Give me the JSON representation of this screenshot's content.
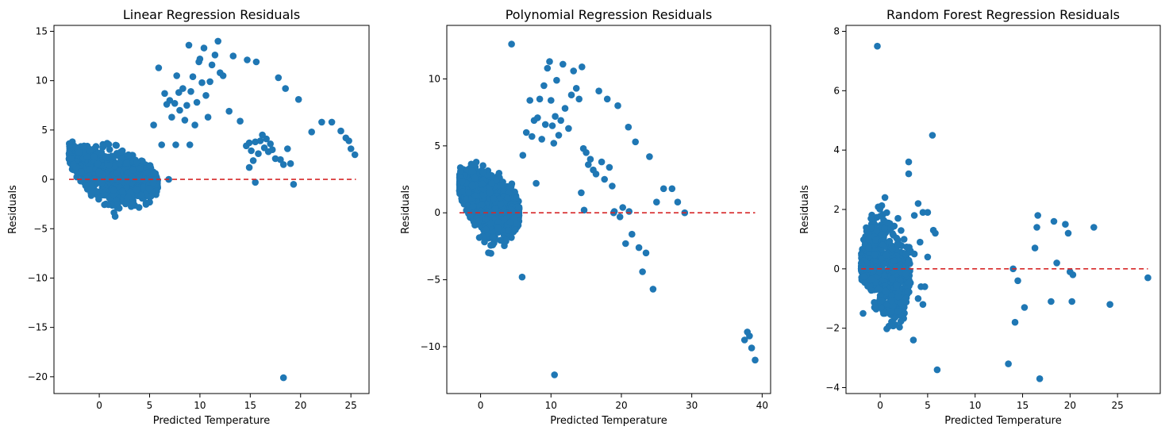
{
  "chart_data": [
    {
      "type": "scatter",
      "title": "Linear Regression Residuals",
      "xlabel": "Predicted Temperature",
      "ylabel": "Residuals",
      "xlim": [
        -4.5,
        26.8
      ],
      "ylim": [
        -21.7,
        15.6
      ],
      "xticks": [
        0,
        5,
        10,
        15,
        20,
        25
      ],
      "xtick_labels": [
        "0",
        "5",
        "10",
        "15",
        "20",
        "25"
      ],
      "yticks": [
        -20,
        -15,
        -10,
        -5,
        0,
        5,
        10,
        15
      ],
      "ytick_labels": [
        "−20",
        "−15",
        "−10",
        "−5",
        "0",
        "5",
        "10",
        "15"
      ],
      "grid": false,
      "series": [
        {
          "color": "#1f77b4",
          "cluster": {
            "xmin": -3,
            "xmax": 5.8,
            "count": 1100,
            "seed": 11,
            "upper": [
              [
                -3,
                3.8
              ],
              [
                -1,
                4.3
              ],
              [
                1,
                4.3
              ],
              [
                3,
                3.5
              ],
              [
                5,
                2.5
              ],
              [
                5.8,
                0.5
              ]
            ],
            "lower": [
              [
                -3,
                1.5
              ],
              [
                -1.5,
                -1.5
              ],
              [
                0,
                -3
              ],
              [
                1.5,
                -4.2
              ],
              [
                3,
                -3.5
              ],
              [
                5,
                -3.2
              ],
              [
                5.8,
                -1.5
              ]
            ]
          },
          "points": [
            [
              5.9,
              11.3
            ],
            [
              6.5,
              8.7
            ],
            [
              6.7,
              7.6
            ],
            [
              7.0,
              8.0
            ],
            [
              7.2,
              6.3
            ],
            [
              7.5,
              7.7
            ],
            [
              7.7,
              10.5
            ],
            [
              7.9,
              8.8
            ],
            [
              8.0,
              7.0
            ],
            [
              8.3,
              9.2
            ],
            [
              8.5,
              6.0
            ],
            [
              8.7,
              7.5
            ],
            [
              8.9,
              13.6
            ],
            [
              9.1,
              8.9
            ],
            [
              9.3,
              10.4
            ],
            [
              9.5,
              5.5
            ],
            [
              9.7,
              7.8
            ],
            [
              9.9,
              11.9
            ],
            [
              10.0,
              12.2
            ],
            [
              10.2,
              9.8
            ],
            [
              10.4,
              13.3
            ],
            [
              10.6,
              8.5
            ],
            [
              10.8,
              6.3
            ],
            [
              11.0,
              9.9
            ],
            [
              11.2,
              11.6
            ],
            [
              11.5,
              12.6
            ],
            [
              11.8,
              14.0
            ],
            [
              12.0,
              10.8
            ],
            [
              12.3,
              10.5
            ],
            [
              12.9,
              6.9
            ],
            [
              13.3,
              12.5
            ],
            [
              14.0,
              5.9
            ],
            [
              14.7,
              12.1
            ],
            [
              14.6,
              3.4
            ],
            [
              14.9,
              3.7
            ],
            [
              15.1,
              2.9
            ],
            [
              15.3,
              1.9
            ],
            [
              15.5,
              3.8
            ],
            [
              15.6,
              11.9
            ],
            [
              15.8,
              2.6
            ],
            [
              16.0,
              3.9
            ],
            [
              16.2,
              4.5
            ],
            [
              16.4,
              3.2
            ],
            [
              16.6,
              4.1
            ],
            [
              16.8,
              2.8
            ],
            [
              17.0,
              3.6
            ],
            [
              17.2,
              3.0
            ],
            [
              17.5,
              2.1
            ],
            [
              17.8,
              10.3
            ],
            [
              18.0,
              2.0
            ],
            [
              18.3,
              1.5
            ],
            [
              18.5,
              9.2
            ],
            [
              18.7,
              3.1
            ],
            [
              19.0,
              1.6
            ],
            [
              19.3,
              -0.5
            ],
            [
              19.8,
              8.1
            ],
            [
              15.5,
              -0.3
            ],
            [
              14.9,
              1.2
            ],
            [
              18.3,
              -20.1
            ],
            [
              21.1,
              4.8
            ],
            [
              22.1,
              5.8
            ],
            [
              23.1,
              5.8
            ],
            [
              24.0,
              4.9
            ],
            [
              24.5,
              4.2
            ],
            [
              24.8,
              3.9
            ],
            [
              25.0,
              3.1
            ],
            [
              25.4,
              2.5
            ],
            [
              5.4,
              5.5
            ],
            [
              6.2,
              3.5
            ],
            [
              7.6,
              3.5
            ],
            [
              9.0,
              3.5
            ],
            [
              6.9,
              0.0
            ]
          ]
        }
      ],
      "reference_line": {
        "y": 0,
        "x_range": [
          -3,
          25.5
        ],
        "color": "#d62728",
        "style": "dashed"
      }
    },
    {
      "type": "scatter",
      "title": "Polynomial Regression Residuals",
      "xlabel": "Predicted Temperature",
      "ylabel": "Residuals",
      "xlim": [
        -4.8,
        41.2
      ],
      "ylim": [
        -13.5,
        14.0
      ],
      "xticks": [
        0,
        10,
        20,
        30,
        40
      ],
      "xtick_labels": [
        "0",
        "10",
        "20",
        "30",
        "40"
      ],
      "yticks": [
        -10,
        -5,
        0,
        5,
        10
      ],
      "ytick_labels": [
        "−10",
        "−5",
        "0",
        "5",
        "10"
      ],
      "grid": false,
      "series": [
        {
          "color": "#1f77b4",
          "cluster": {
            "xmin": -3,
            "xmax": 5.5,
            "count": 1100,
            "seed": 23,
            "upper": [
              [
                -3,
                3.5
              ],
              [
                -1,
                4.5
              ],
              [
                1,
                4.2
              ],
              [
                3,
                3.8
              ],
              [
                4.5,
                2.8
              ],
              [
                5.5,
                1.0
              ]
            ],
            "lower": [
              [
                -3,
                1.0
              ],
              [
                -1.5,
                -1.0
              ],
              [
                0,
                -2.5
              ],
              [
                1.5,
                -3.7
              ],
              [
                3,
                -3.2
              ],
              [
                4.5,
                -2.5
              ],
              [
                5.5,
                -1.0
              ]
            ]
          },
          "points": [
            [
              4.4,
              12.6
            ],
            [
              5.9,
              -4.8
            ],
            [
              6.0,
              4.3
            ],
            [
              6.5,
              6.0
            ],
            [
              7.0,
              8.4
            ],
            [
              7.3,
              5.7
            ],
            [
              7.6,
              6.9
            ],
            [
              7.9,
              2.2
            ],
            [
              8.1,
              7.1
            ],
            [
              8.4,
              8.5
            ],
            [
              8.7,
              5.5
            ],
            [
              9.0,
              9.5
            ],
            [
              9.2,
              6.6
            ],
            [
              9.5,
              10.8
            ],
            [
              9.8,
              11.3
            ],
            [
              10.0,
              8.4
            ],
            [
              10.2,
              6.5
            ],
            [
              10.4,
              5.2
            ],
            [
              10.6,
              7.2
            ],
            [
              10.8,
              9.9
            ],
            [
              11.1,
              5.8
            ],
            [
              11.4,
              6.9
            ],
            [
              11.7,
              11.1
            ],
            [
              12.0,
              7.8
            ],
            [
              12.5,
              6.3
            ],
            [
              12.9,
              8.8
            ],
            [
              13.2,
              10.6
            ],
            [
              13.6,
              9.3
            ],
            [
              14.0,
              8.5
            ],
            [
              14.4,
              10.9
            ],
            [
              14.6,
              4.8
            ],
            [
              15.0,
              4.5
            ],
            [
              15.3,
              3.6
            ],
            [
              15.6,
              4.0
            ],
            [
              16.0,
              3.2
            ],
            [
              16.4,
              2.9
            ],
            [
              16.8,
              9.1
            ],
            [
              17.2,
              3.8
            ],
            [
              17.6,
              2.5
            ],
            [
              18.0,
              8.5
            ],
            [
              18.3,
              3.4
            ],
            [
              18.7,
              2.0
            ],
            [
              19.0,
              0.1
            ],
            [
              19.5,
              8.0
            ],
            [
              19.8,
              -0.3
            ],
            [
              20.2,
              0.4
            ],
            [
              20.6,
              -2.3
            ],
            [
              21.0,
              6.4
            ],
            [
              21.5,
              -1.6
            ],
            [
              22.0,
              5.3
            ],
            [
              22.5,
              -2.6
            ],
            [
              23.0,
              -4.4
            ],
            [
              23.5,
              -3.0
            ],
            [
              24.0,
              4.2
            ],
            [
              24.5,
              -5.7
            ],
            [
              25.0,
              0.8
            ],
            [
              26.0,
              1.8
            ],
            [
              27.2,
              1.8
            ],
            [
              28.0,
              0.8
            ],
            [
              29.0,
              0.0
            ],
            [
              10.5,
              -12.1
            ],
            [
              37.5,
              -9.5
            ],
            [
              37.9,
              -8.9
            ],
            [
              38.2,
              -9.2
            ],
            [
              38.5,
              -10.1
            ],
            [
              39.0,
              -11.0
            ],
            [
              14.7,
              0.2
            ],
            [
              14.3,
              1.5
            ],
            [
              18.9,
              0.0
            ],
            [
              21.1,
              0.1
            ]
          ]
        }
      ],
      "reference_line": {
        "y": 0,
        "x_range": [
          -3,
          39
        ],
        "color": "#d62728",
        "style": "dashed"
      }
    },
    {
      "type": "scatter",
      "title": "Random Forest Regression Residuals",
      "xlabel": "Predicted Temperature",
      "ylabel": "Residuals",
      "xlim": [
        -3.6,
        29.5
      ],
      "ylim": [
        -4.2,
        8.2
      ],
      "xticks": [
        0,
        5,
        10,
        15,
        20,
        25
      ],
      "xtick_labels": [
        "0",
        "5",
        "10",
        "15",
        "20",
        "25"
      ],
      "yticks": [
        -4,
        -2,
        0,
        2,
        4,
        6,
        8
      ],
      "ytick_labels": [
        "−4",
        "−2",
        "0",
        "2",
        "4",
        "6",
        "8"
      ],
      "grid": false,
      "series": [
        {
          "color": "#1f77b4",
          "cluster": {
            "xmin": -2,
            "xmax": 3.2,
            "count": 700,
            "seed": 37,
            "upper": [
              [
                -2,
                0.8
              ],
              [
                -1,
                2.2
              ],
              [
                0,
                2.8
              ],
              [
                1,
                2.4
              ],
              [
                2,
                2.0
              ],
              [
                3.2,
                1.0
              ]
            ],
            "lower": [
              [
                -2,
                -0.5
              ],
              [
                -1,
                -1.4
              ],
              [
                0,
                -2.3
              ],
              [
                1,
                -2.8
              ],
              [
                2,
                -2.9
              ],
              [
                3.2,
                -1.0
              ]
            ]
          },
          "points": [
            [
              -0.3,
              7.5
            ],
            [
              5.5,
              4.5
            ],
            [
              3.0,
              3.6
            ],
            [
              3.0,
              3.2
            ],
            [
              4.0,
              2.2
            ],
            [
              4.5,
              1.9
            ],
            [
              5.0,
              1.9
            ],
            [
              5.8,
              1.2
            ],
            [
              3.6,
              1.8
            ],
            [
              4.2,
              0.9
            ],
            [
              3.6,
              0.5
            ],
            [
              4.3,
              -0.6
            ],
            [
              4.7,
              -0.6
            ],
            [
              5.0,
              0.4
            ],
            [
              5.6,
              1.3
            ],
            [
              4.0,
              -1.0
            ],
            [
              3.5,
              -2.4
            ],
            [
              4.5,
              -1.2
            ],
            [
              6.0,
              -3.4
            ],
            [
              13.5,
              -3.2
            ],
            [
              14.0,
              0.0
            ],
            [
              14.2,
              -1.8
            ],
            [
              14.5,
              -0.4
            ],
            [
              15.2,
              -1.3
            ],
            [
              16.3,
              0.7
            ],
            [
              16.5,
              1.4
            ],
            [
              16.6,
              1.8
            ],
            [
              16.8,
              -3.7
            ],
            [
              18.0,
              -1.1
            ],
            [
              18.3,
              1.6
            ],
            [
              18.6,
              0.2
            ],
            [
              19.5,
              1.5
            ],
            [
              19.8,
              1.2
            ],
            [
              20.0,
              -0.1
            ],
            [
              20.2,
              -1.1
            ],
            [
              20.3,
              -0.2
            ],
            [
              22.5,
              1.4
            ],
            [
              24.2,
              -1.2
            ],
            [
              28.2,
              -0.3
            ],
            [
              -2.0,
              0.0
            ],
            [
              -1.8,
              -1.5
            ],
            [
              -0.6,
              -1.3
            ]
          ]
        }
      ],
      "reference_line": {
        "y": 0,
        "x_range": [
          -2,
          28.2
        ],
        "color": "#d62728",
        "style": "dashed"
      }
    }
  ]
}
